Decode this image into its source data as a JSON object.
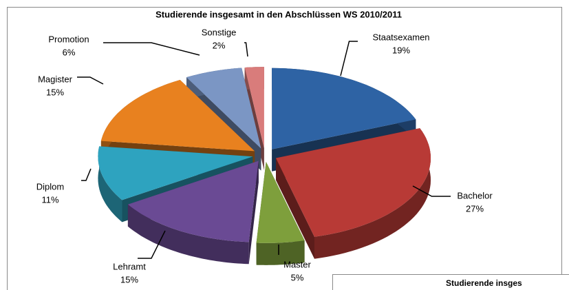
{
  "chart_data": {
    "type": "pie3d",
    "title": "Studierende insgesamt  in den Abschlüssen WS 2010/2011",
    "categories": [
      "Staatsexamen",
      "Bachelor",
      "Master",
      "Lehramt",
      "Diplom",
      "Magister",
      "Promotion",
      "Sonstige"
    ],
    "values": [
      19,
      27,
      5,
      15,
      11,
      15,
      6,
      2
    ],
    "value_labels": [
      "19%",
      "27%",
      "5%",
      "15%",
      "11%",
      "15%",
      "6%",
      "2%"
    ],
    "colors": [
      "#2e63a4",
      "#b83a36",
      "#7e9f3c",
      "#6a4a94",
      "#2ea3bf",
      "#e8811f",
      "#7b96c4",
      "#d97c7b"
    ]
  },
  "partial_chart": {
    "title": "Studierende insges"
  }
}
